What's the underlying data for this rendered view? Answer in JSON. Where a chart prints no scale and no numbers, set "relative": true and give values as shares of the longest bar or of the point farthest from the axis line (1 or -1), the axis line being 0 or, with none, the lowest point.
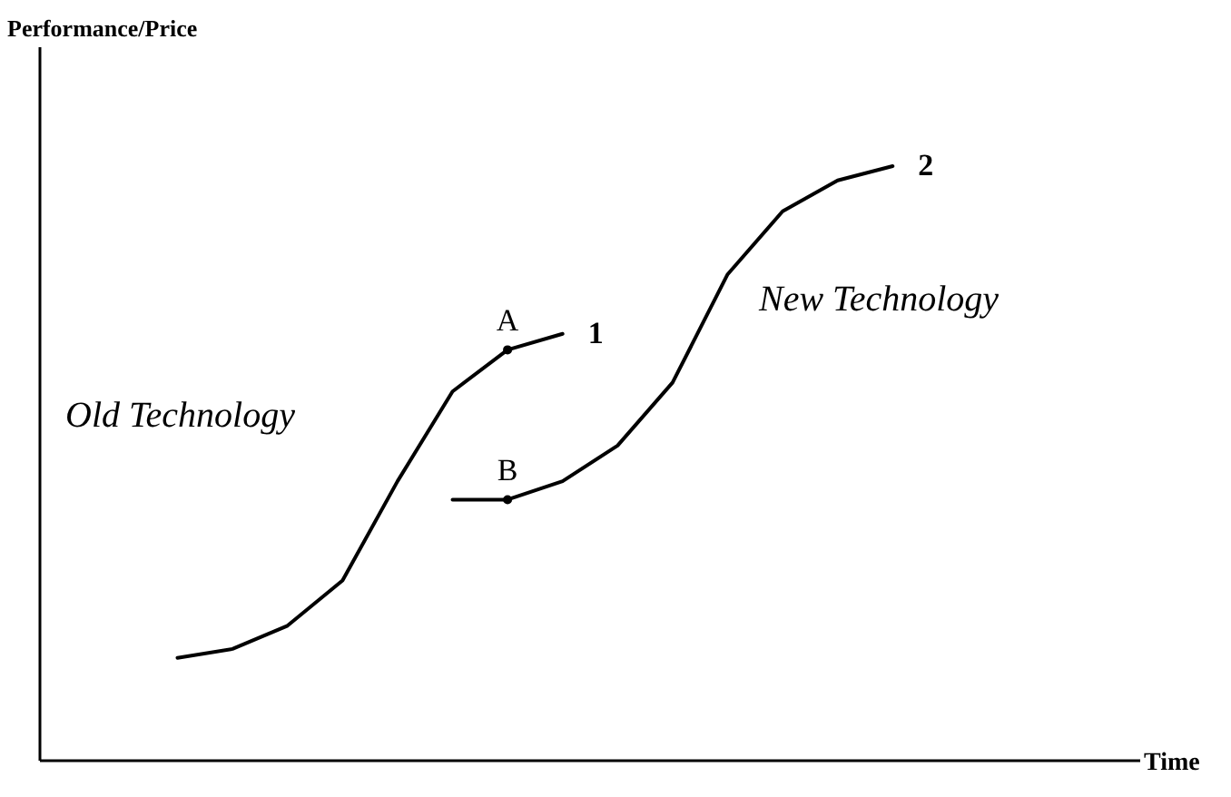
{
  "chart_data": {
    "type": "line",
    "relative": true,
    "xlabel": "Time",
    "marker": "none",
    "line_style": "solid",
    "categories": [
      null,
      null,
      null,
      null,
      null,
      null,
      null,
      null,
      null,
      null,
      null,
      null,
      null,
      null,
      null,
      null,
      null,
      null,
      null,
      null
    ],
    "series": [
      {
        "name": "1",
        "color": "#000000",
        "values": [
          null,
          null,
          0.173,
          0.188,
          0.227,
          0.303,
          0.47,
          0.621,
          0.691,
          0.718,
          null,
          null,
          null,
          null,
          null,
          null,
          null,
          null,
          null,
          null
        ]
      },
      {
        "name": "2",
        "color": "#000000",
        "values": [
          null,
          null,
          null,
          null,
          null,
          null,
          null,
          0.439,
          0.439,
          0.47,
          0.53,
          0.636,
          0.818,
          0.924,
          0.976,
          1,
          null,
          null,
          null,
          null
        ]
      }
    ],
    "annotations": [
      "Old Technology",
      "New Technology",
      "A",
      "B",
      "Performance/Price"
    ]
  }
}
